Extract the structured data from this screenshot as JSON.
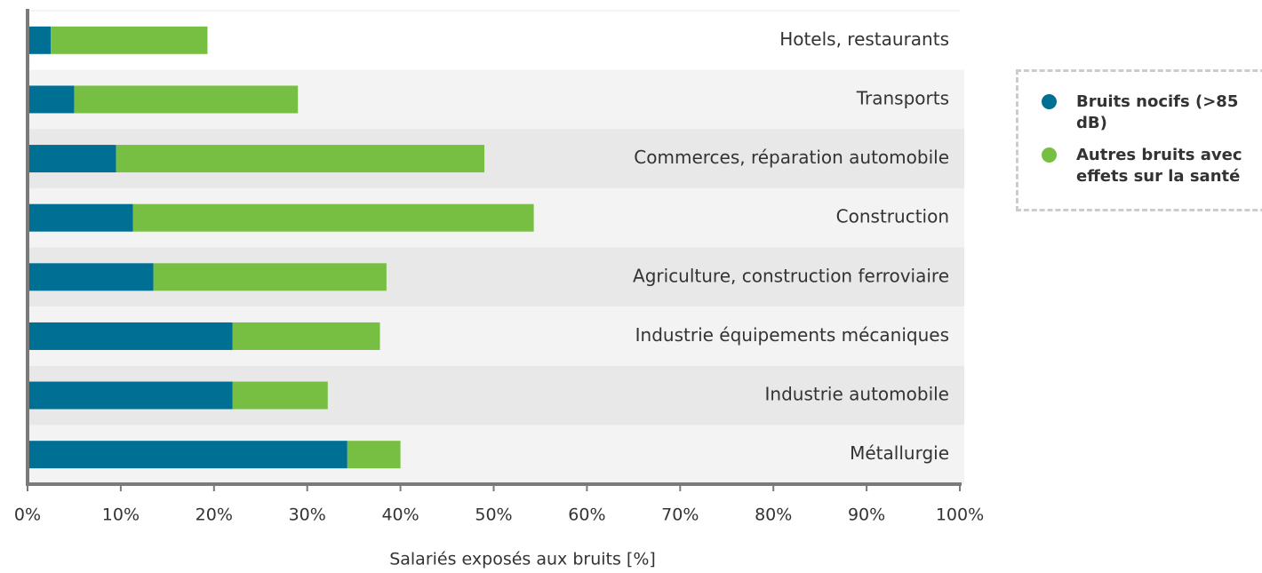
{
  "chart_data": {
    "type": "stacked-barh",
    "categories": [
      "Hotels, restaurants",
      "Transports",
      "Commerces, réparation automobile",
      "Construction",
      "Agriculture, construction ferroviaire",
      "Industrie équipements mécaniques",
      "Industrie automobile",
      "Métallurgie"
    ],
    "series": [
      {
        "name": "Bruits nocifs (>85 dB)",
        "color": "#006f94",
        "values": [
          2.5,
          5,
          9.5,
          11.3,
          13.5,
          22,
          22,
          34.3
        ]
      },
      {
        "name": "Autres bruits avec effets sur la santé",
        "color": "#77bf43",
        "values": [
          16.8,
          24,
          39.5,
          43,
          25,
          15.8,
          10.2,
          5.7
        ]
      }
    ],
    "xlabel": "Salariés exposés aux bruits [%]",
    "xlim": [
      0,
      100
    ],
    "xticks": [
      {
        "value": 0,
        "label": "0%"
      },
      {
        "value": 10,
        "label": "10%"
      },
      {
        "value": 20,
        "label": "20%"
      },
      {
        "value": 30,
        "label": "30%"
      },
      {
        "value": 40,
        "label": "40%"
      },
      {
        "value": 50,
        "label": "50%"
      },
      {
        "value": 60,
        "label": "60%"
      },
      {
        "value": 70,
        "label": "70%"
      },
      {
        "value": 80,
        "label": "80%"
      },
      {
        "value": 90,
        "label": "90%"
      },
      {
        "value": 100,
        "label": "100%"
      }
    ],
    "legend": "right"
  }
}
